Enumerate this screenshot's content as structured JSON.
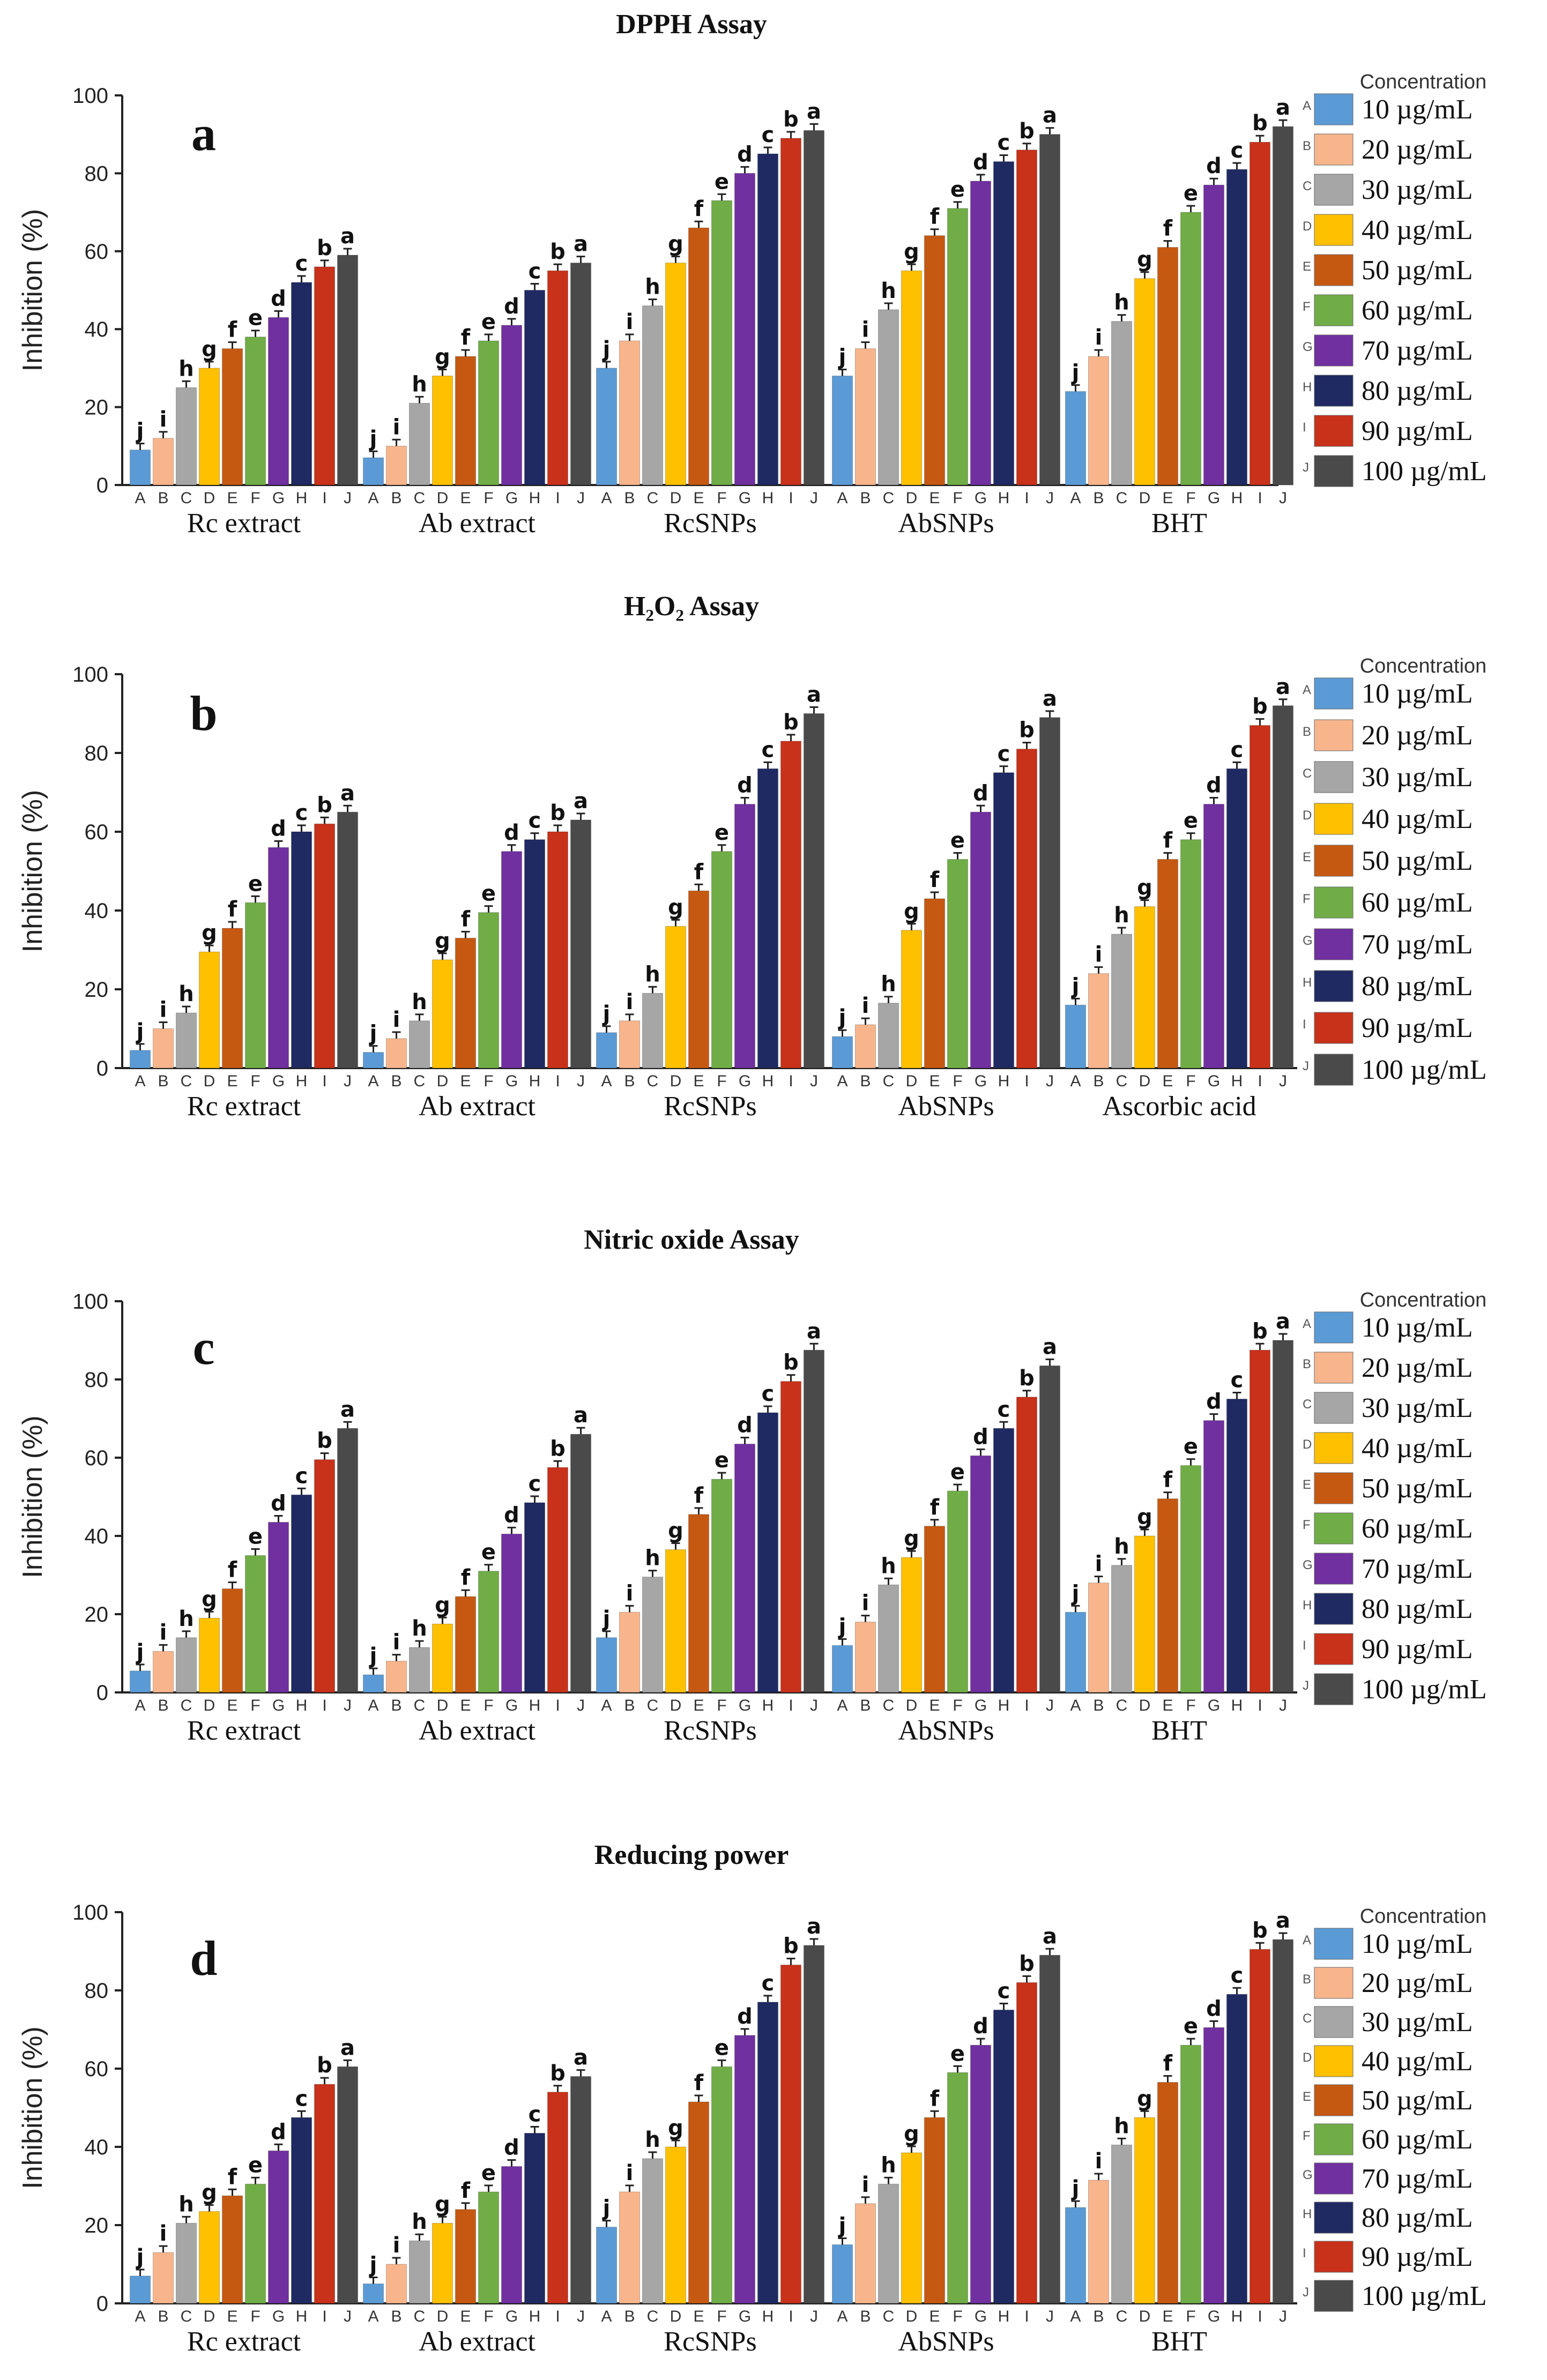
{
  "colors": [
    "#5b9bd5",
    "#f8b58c",
    "#a6a6a6",
    "#ffc000",
    "#c65911",
    "#70ad47",
    "#7030a0",
    "#1f2a63",
    "#c8311a",
    "#4a4a4a"
  ],
  "concentration_title": "Concentration",
  "concentrations": [
    "10 µg/mL",
    "20 µg/mL",
    "30 µg/mL",
    "40 µg/mL",
    "50 µg/mL",
    "60 µg/mL",
    "70 µg/mL",
    "80 µg/mL",
    "90 µg/mL",
    "100 µg/mL"
  ],
  "chart_data": [
    {
      "type": "bar",
      "panel": "a",
      "title": "DPPH Assay",
      "ylabel": "Inhibition (%)",
      "ylim": [
        0,
        100
      ],
      "yticks": [
        0,
        20,
        40,
        60,
        80,
        100
      ],
      "legend_keys": [
        "A",
        "B",
        "C",
        "D",
        "E",
        "F",
        "G",
        "H",
        "I",
        "J"
      ],
      "groups": [
        {
          "name": "Rc extract",
          "categories": [
            "A",
            "B",
            "C",
            "D",
            "E",
            "F",
            "G",
            "H",
            "I",
            "J"
          ],
          "values": [
            9,
            12,
            25,
            30,
            35,
            38,
            43,
            52,
            56,
            59
          ],
          "sig": [
            "j",
            "i",
            "h",
            "g",
            "f",
            "e",
            "d",
            "c",
            "b",
            "a"
          ]
        },
        {
          "name": "Ab extract",
          "categories": [
            "A",
            "B",
            "C",
            "D",
            "E",
            "F",
            "G",
            "H",
            "I",
            "J"
          ],
          "values": [
            7,
            10,
            21,
            28,
            33,
            37,
            41,
            50,
            55,
            57
          ],
          "sig": [
            "j",
            "i",
            "h",
            "g",
            "f",
            "e",
            "d",
            "c",
            "b",
            "a"
          ]
        },
        {
          "name": "RcSNPs",
          "categories": [
            "A",
            "B",
            "C",
            "D",
            "E",
            "F",
            "G",
            "H",
            "I",
            "J"
          ],
          "values": [
            30,
            37,
            46,
            57,
            66,
            73,
            80,
            85,
            89,
            91
          ],
          "sig": [
            "j",
            "i",
            "h",
            "g",
            "f",
            "e",
            "d",
            "c",
            "b",
            "a"
          ]
        },
        {
          "name": "AbSNPs",
          "categories": [
            "A",
            "B",
            "C",
            "D",
            "E",
            "F",
            "G",
            "H",
            "I",
            "J"
          ],
          "values": [
            28,
            35,
            45,
            55,
            64,
            71,
            78,
            83,
            86,
            90
          ],
          "sig": [
            "j",
            "i",
            "h",
            "g",
            "f",
            "e",
            "d",
            "c",
            "b",
            "a"
          ]
        },
        {
          "name": "BHT",
          "categories": [
            "A",
            "B",
            "C",
            "D",
            "E",
            "F",
            "G",
            "H",
            "I",
            "J"
          ],
          "values": [
            24,
            33,
            42,
            53,
            61,
            70,
            77,
            81,
            88,
            92
          ],
          "sig": [
            "j",
            "i",
            "h",
            "g",
            "f",
            "e",
            "d",
            "c",
            "b",
            "a"
          ]
        }
      ]
    },
    {
      "type": "bar",
      "panel": "b",
      "title": "H₂O₂ Assay",
      "ylabel": "Inhibition (%)",
      "ylim": [
        0,
        100
      ],
      "yticks": [
        0,
        20,
        40,
        60,
        80,
        100
      ],
      "legend_keys": [
        "A",
        "B",
        "C",
        "D",
        "E",
        "F",
        "G",
        "H",
        "I",
        "J"
      ],
      "groups": [
        {
          "name": "Rc extract",
          "categories": [
            "A",
            "B",
            "C",
            "D",
            "E",
            "F",
            "G",
            "H",
            "I",
            "J"
          ],
          "values": [
            4.5,
            10,
            14,
            29.5,
            35.5,
            42,
            56,
            60,
            62,
            65
          ],
          "sig": [
            "j",
            "i",
            "h",
            "g",
            "f",
            "e",
            "d",
            "c",
            "b",
            "a"
          ]
        },
        {
          "name": "Ab extract",
          "categories": [
            "A",
            "B",
            "C",
            "D",
            "E",
            "F",
            "G",
            "H",
            "I",
            "J"
          ],
          "values": [
            4,
            7.5,
            12,
            27.5,
            33,
            39.5,
            55,
            58,
            60,
            63
          ],
          "sig": [
            "j",
            "i",
            "h",
            "g",
            "f",
            "e",
            "d",
            "c",
            "b",
            "a"
          ]
        },
        {
          "name": "RcSNPs",
          "categories": [
            "A",
            "B",
            "C",
            "D",
            "E",
            "F",
            "G",
            "H",
            "I",
            "J"
          ],
          "values": [
            9,
            12,
            19,
            36,
            45,
            55,
            67,
            76,
            83,
            90
          ],
          "sig": [
            "j",
            "i",
            "h",
            "g",
            "f",
            "e",
            "d",
            "c",
            "b",
            "a"
          ]
        },
        {
          "name": "AbSNPs",
          "categories": [
            "A",
            "B",
            "C",
            "D",
            "E",
            "F",
            "G",
            "H",
            "I",
            "J"
          ],
          "values": [
            8,
            11,
            16.5,
            35,
            43,
            53,
            65,
            75,
            81,
            89
          ],
          "sig": [
            "j",
            "i",
            "h",
            "g",
            "f",
            "e",
            "d",
            "c",
            "b",
            "a"
          ]
        },
        {
          "name": "Ascorbic acid",
          "categories": [
            "A",
            "B",
            "C",
            "D",
            "E",
            "F",
            "G",
            "H",
            "I",
            "J"
          ],
          "values": [
            16,
            24,
            34,
            41,
            53,
            58,
            67,
            76,
            87,
            92
          ],
          "sig": [
            "j",
            "i",
            "h",
            "g",
            "f",
            "e",
            "d",
            "c",
            "b",
            "a"
          ]
        }
      ]
    },
    {
      "type": "bar",
      "panel": "c",
      "title": "Nitric oxide Assay",
      "ylabel": "Inhibition (%)",
      "ylim": [
        0,
        100
      ],
      "yticks": [
        0,
        20,
        40,
        60,
        80,
        100
      ],
      "legend_keys": [
        "A",
        "B",
        "C",
        "D",
        "E",
        "F",
        "G",
        "H",
        "I",
        "J"
      ],
      "groups": [
        {
          "name": "Rc extract",
          "categories": [
            "A",
            "B",
            "C",
            "D",
            "E",
            "F",
            "G",
            "H",
            "I",
            "J"
          ],
          "values": [
            5.5,
            10.5,
            14,
            19,
            26.5,
            35,
            43.5,
            50.5,
            59.5,
            67.5
          ],
          "sig": [
            "j",
            "i",
            "h",
            "g",
            "f",
            "e",
            "d",
            "c",
            "b",
            "a"
          ]
        },
        {
          "name": "Ab extract",
          "categories": [
            "A",
            "B",
            "C",
            "D",
            "E",
            "F",
            "G",
            "H",
            "I",
            "J"
          ],
          "values": [
            4.5,
            8,
            11.5,
            17.5,
            24.5,
            31,
            40.5,
            48.5,
            57.5,
            66
          ],
          "sig": [
            "j",
            "i",
            "h",
            "g",
            "f",
            "e",
            "d",
            "c",
            "b",
            "a"
          ]
        },
        {
          "name": "RcSNPs",
          "categories": [
            "A",
            "B",
            "C",
            "D",
            "E",
            "F",
            "G",
            "H",
            "I",
            "J"
          ],
          "values": [
            14,
            20.5,
            29.5,
            36.5,
            45.5,
            54.5,
            63.5,
            71.5,
            79.5,
            87.5
          ],
          "sig": [
            "j",
            "i",
            "h",
            "g",
            "f",
            "e",
            "d",
            "c",
            "b",
            "a"
          ]
        },
        {
          "name": "AbSNPs",
          "categories": [
            "A",
            "B",
            "C",
            "D",
            "E",
            "F",
            "G",
            "H",
            "I",
            "J"
          ],
          "values": [
            12,
            18,
            27.5,
            34.5,
            42.5,
            51.5,
            60.5,
            67.5,
            75.5,
            83.5
          ],
          "sig": [
            "j",
            "i",
            "h",
            "g",
            "f",
            "e",
            "d",
            "c",
            "b",
            "a"
          ]
        },
        {
          "name": "BHT",
          "categories": [
            "A",
            "B",
            "C",
            "D",
            "E",
            "F",
            "G",
            "H",
            "I",
            "J"
          ],
          "values": [
            20.5,
            28,
            32.5,
            40,
            49.5,
            58,
            69.5,
            75,
            87.5,
            90
          ],
          "sig": [
            "j",
            "i",
            "h",
            "g",
            "f",
            "e",
            "d",
            "c",
            "b",
            "a"
          ]
        }
      ]
    },
    {
      "type": "bar",
      "panel": "d",
      "title": "Reducing power",
      "ylabel": "Inhibition (%)",
      "ylim": [
        0,
        100
      ],
      "yticks": [
        0,
        20,
        40,
        60,
        80,
        100
      ],
      "legend_keys": [
        "A",
        "B",
        "C",
        "D",
        "E",
        "F",
        "G",
        "H",
        "I",
        "J"
      ],
      "groups": [
        {
          "name": "Rc extract",
          "categories": [
            "A",
            "B",
            "C",
            "D",
            "E",
            "F",
            "G",
            "H",
            "I",
            "J"
          ],
          "values": [
            7,
            13,
            20.5,
            23.5,
            27.5,
            30.5,
            39,
            47.5,
            56,
            60.5
          ],
          "sig": [
            "j",
            "i",
            "h",
            "g",
            "f",
            "e",
            "d",
            "c",
            "b",
            "a"
          ]
        },
        {
          "name": "Ab extract",
          "categories": [
            "A",
            "B",
            "C",
            "D",
            "E",
            "F",
            "G",
            "H",
            "I",
            "J"
          ],
          "values": [
            5,
            10,
            16,
            20.5,
            24,
            28.5,
            35,
            43.5,
            54,
            58
          ],
          "sig": [
            "j",
            "i",
            "h",
            "g",
            "f",
            "e",
            "d",
            "c",
            "b",
            "a"
          ]
        },
        {
          "name": "RcSNPs",
          "categories": [
            "A",
            "B",
            "C",
            "D",
            "E",
            "F",
            "G",
            "H",
            "I",
            "J"
          ],
          "values": [
            19.5,
            28.5,
            37,
            40,
            51.5,
            60.5,
            68.5,
            77,
            86.5,
            91.5
          ],
          "sig": [
            "j",
            "i",
            "h",
            "g",
            "f",
            "e",
            "d",
            "c",
            "b",
            "a"
          ]
        },
        {
          "name": "AbSNPs",
          "categories": [
            "A",
            "B",
            "C",
            "D",
            "E",
            "F",
            "G",
            "H",
            "I",
            "J"
          ],
          "values": [
            15,
            25.5,
            30.5,
            38.5,
            47.5,
            59,
            66,
            75,
            82,
            89
          ],
          "sig": [
            "j",
            "i",
            "h",
            "g",
            "f",
            "e",
            "d",
            "c",
            "b",
            "a"
          ]
        },
        {
          "name": "BHT",
          "categories": [
            "A",
            "B",
            "C",
            "D",
            "E",
            "F",
            "G",
            "H",
            "I",
            "J"
          ],
          "values": [
            24.5,
            31.5,
            40.5,
            47.5,
            56.5,
            66,
            70.5,
            79,
            90.5,
            93
          ],
          "sig": [
            "j",
            "i",
            "h",
            "g",
            "f",
            "e",
            "d",
            "c",
            "b",
            "a"
          ]
        }
      ]
    }
  ]
}
